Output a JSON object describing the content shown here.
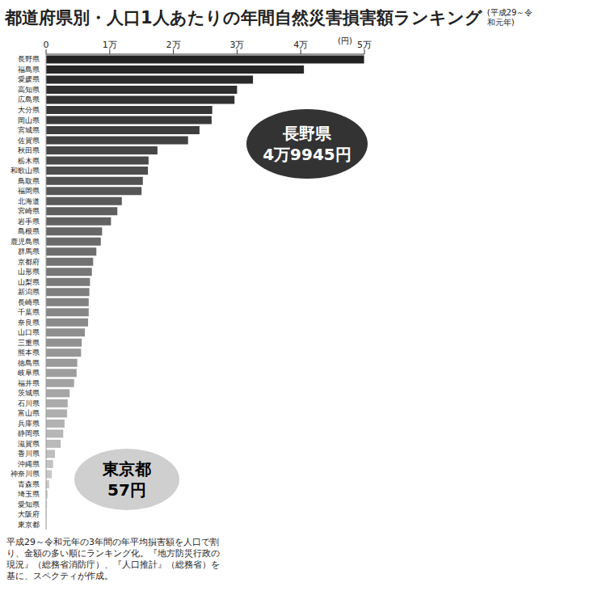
{
  "chart_data": {
    "type": "bar",
    "orientation": "horizontal",
    "title": "都道府県別・人口1人あたりの年間自然災害損害額ランキング",
    "subtitle": "(平成29～令和元年)",
    "xlabel": "(円)",
    "categories": [
      "長野県",
      "福島県",
      "愛媛県",
      "高知県",
      "広島県",
      "大分県",
      "岡山県",
      "宮城県",
      "佐賀県",
      "秋田県",
      "栃木県",
      "和歌山県",
      "鳥取県",
      "福岡県",
      "北海道",
      "宮崎県",
      "岩手県",
      "島根県",
      "鹿児島県",
      "群馬県",
      "京都府",
      "山形県",
      "山梨県",
      "新潟県",
      "長崎県",
      "千葉県",
      "奈良県",
      "山口県",
      "三重県",
      "熊本県",
      "徳島県",
      "岐阜県",
      "福井県",
      "茨城県",
      "石川県",
      "富山県",
      "兵庫県",
      "静岡県",
      "滋賀県",
      "香川県",
      "沖縄県",
      "神奈川県",
      "青森県",
      "埼玉県",
      "愛知県",
      "大阪府",
      "東京都"
    ],
    "values": [
      49945,
      40500,
      32500,
      30000,
      29600,
      26100,
      26000,
      24100,
      22300,
      17500,
      16100,
      16000,
      15200,
      15000,
      11900,
      11200,
      10200,
      8800,
      8600,
      7900,
      7400,
      7200,
      6900,
      6800,
      6700,
      6700,
      6600,
      6100,
      5600,
      5500,
      4900,
      4800,
      4400,
      3700,
      3400,
      3300,
      2900,
      2700,
      2300,
      1400,
      1100,
      900,
      500,
      250,
      150,
      100,
      57
    ],
    "colors": [
      "#222222",
      "#262626",
      "#2a2a2a",
      "#2e2e2e",
      "#323232",
      "#363636",
      "#3a3a3a",
      "#3e3e3e",
      "#424242",
      "#464646",
      "#4a4a4a",
      "#4e4e4e",
      "#525252",
      "#565656",
      "#5a5a5a",
      "#5e5e5e",
      "#626262",
      "#666666",
      "#6a6a6a",
      "#6e6e6e",
      "#727272",
      "#767676",
      "#7a7a7a",
      "#7e7e7e",
      "#828282",
      "#868686",
      "#8a8a8a",
      "#8e8e8e",
      "#929292",
      "#969696",
      "#9a9a9a",
      "#9e9e9e",
      "#a2a2a2",
      "#a6a6a6",
      "#aaaaaa",
      "#aeaeae",
      "#b2b2b2",
      "#b6b6b6",
      "#bababa",
      "#bebebe",
      "#c2c2c2",
      "#c6c6c6",
      "#cacaca",
      "#cecece",
      "#d2d2d2",
      "#d6d6d6",
      "#dadada"
    ],
    "xlim": [
      0,
      50000
    ],
    "xticks": [
      0,
      {
        "value": 10000,
        "label": "1万"
      },
      {
        "value": 20000,
        "label": "2万"
      },
      {
        "value": 30000,
        "label": "3万"
      },
      {
        "value": 40000,
        "label": "4万"
      },
      {
        "value": 50000,
        "label": "5万"
      }
    ],
    "grid": false,
    "annotations": [
      {
        "lines": [
          "長野県",
          "4万9945円"
        ]
      },
      {
        "lines": [
          "東京都",
          "57円"
        ]
      }
    ],
    "note": "平成29～令和元年の3年間の年平均損害額を人口で割り、金額の多い順にランキング化。『地方防災行政の現況』（総務省消防庁）、『人口推計』（総務省）を基に、スペクティが作成。"
  }
}
